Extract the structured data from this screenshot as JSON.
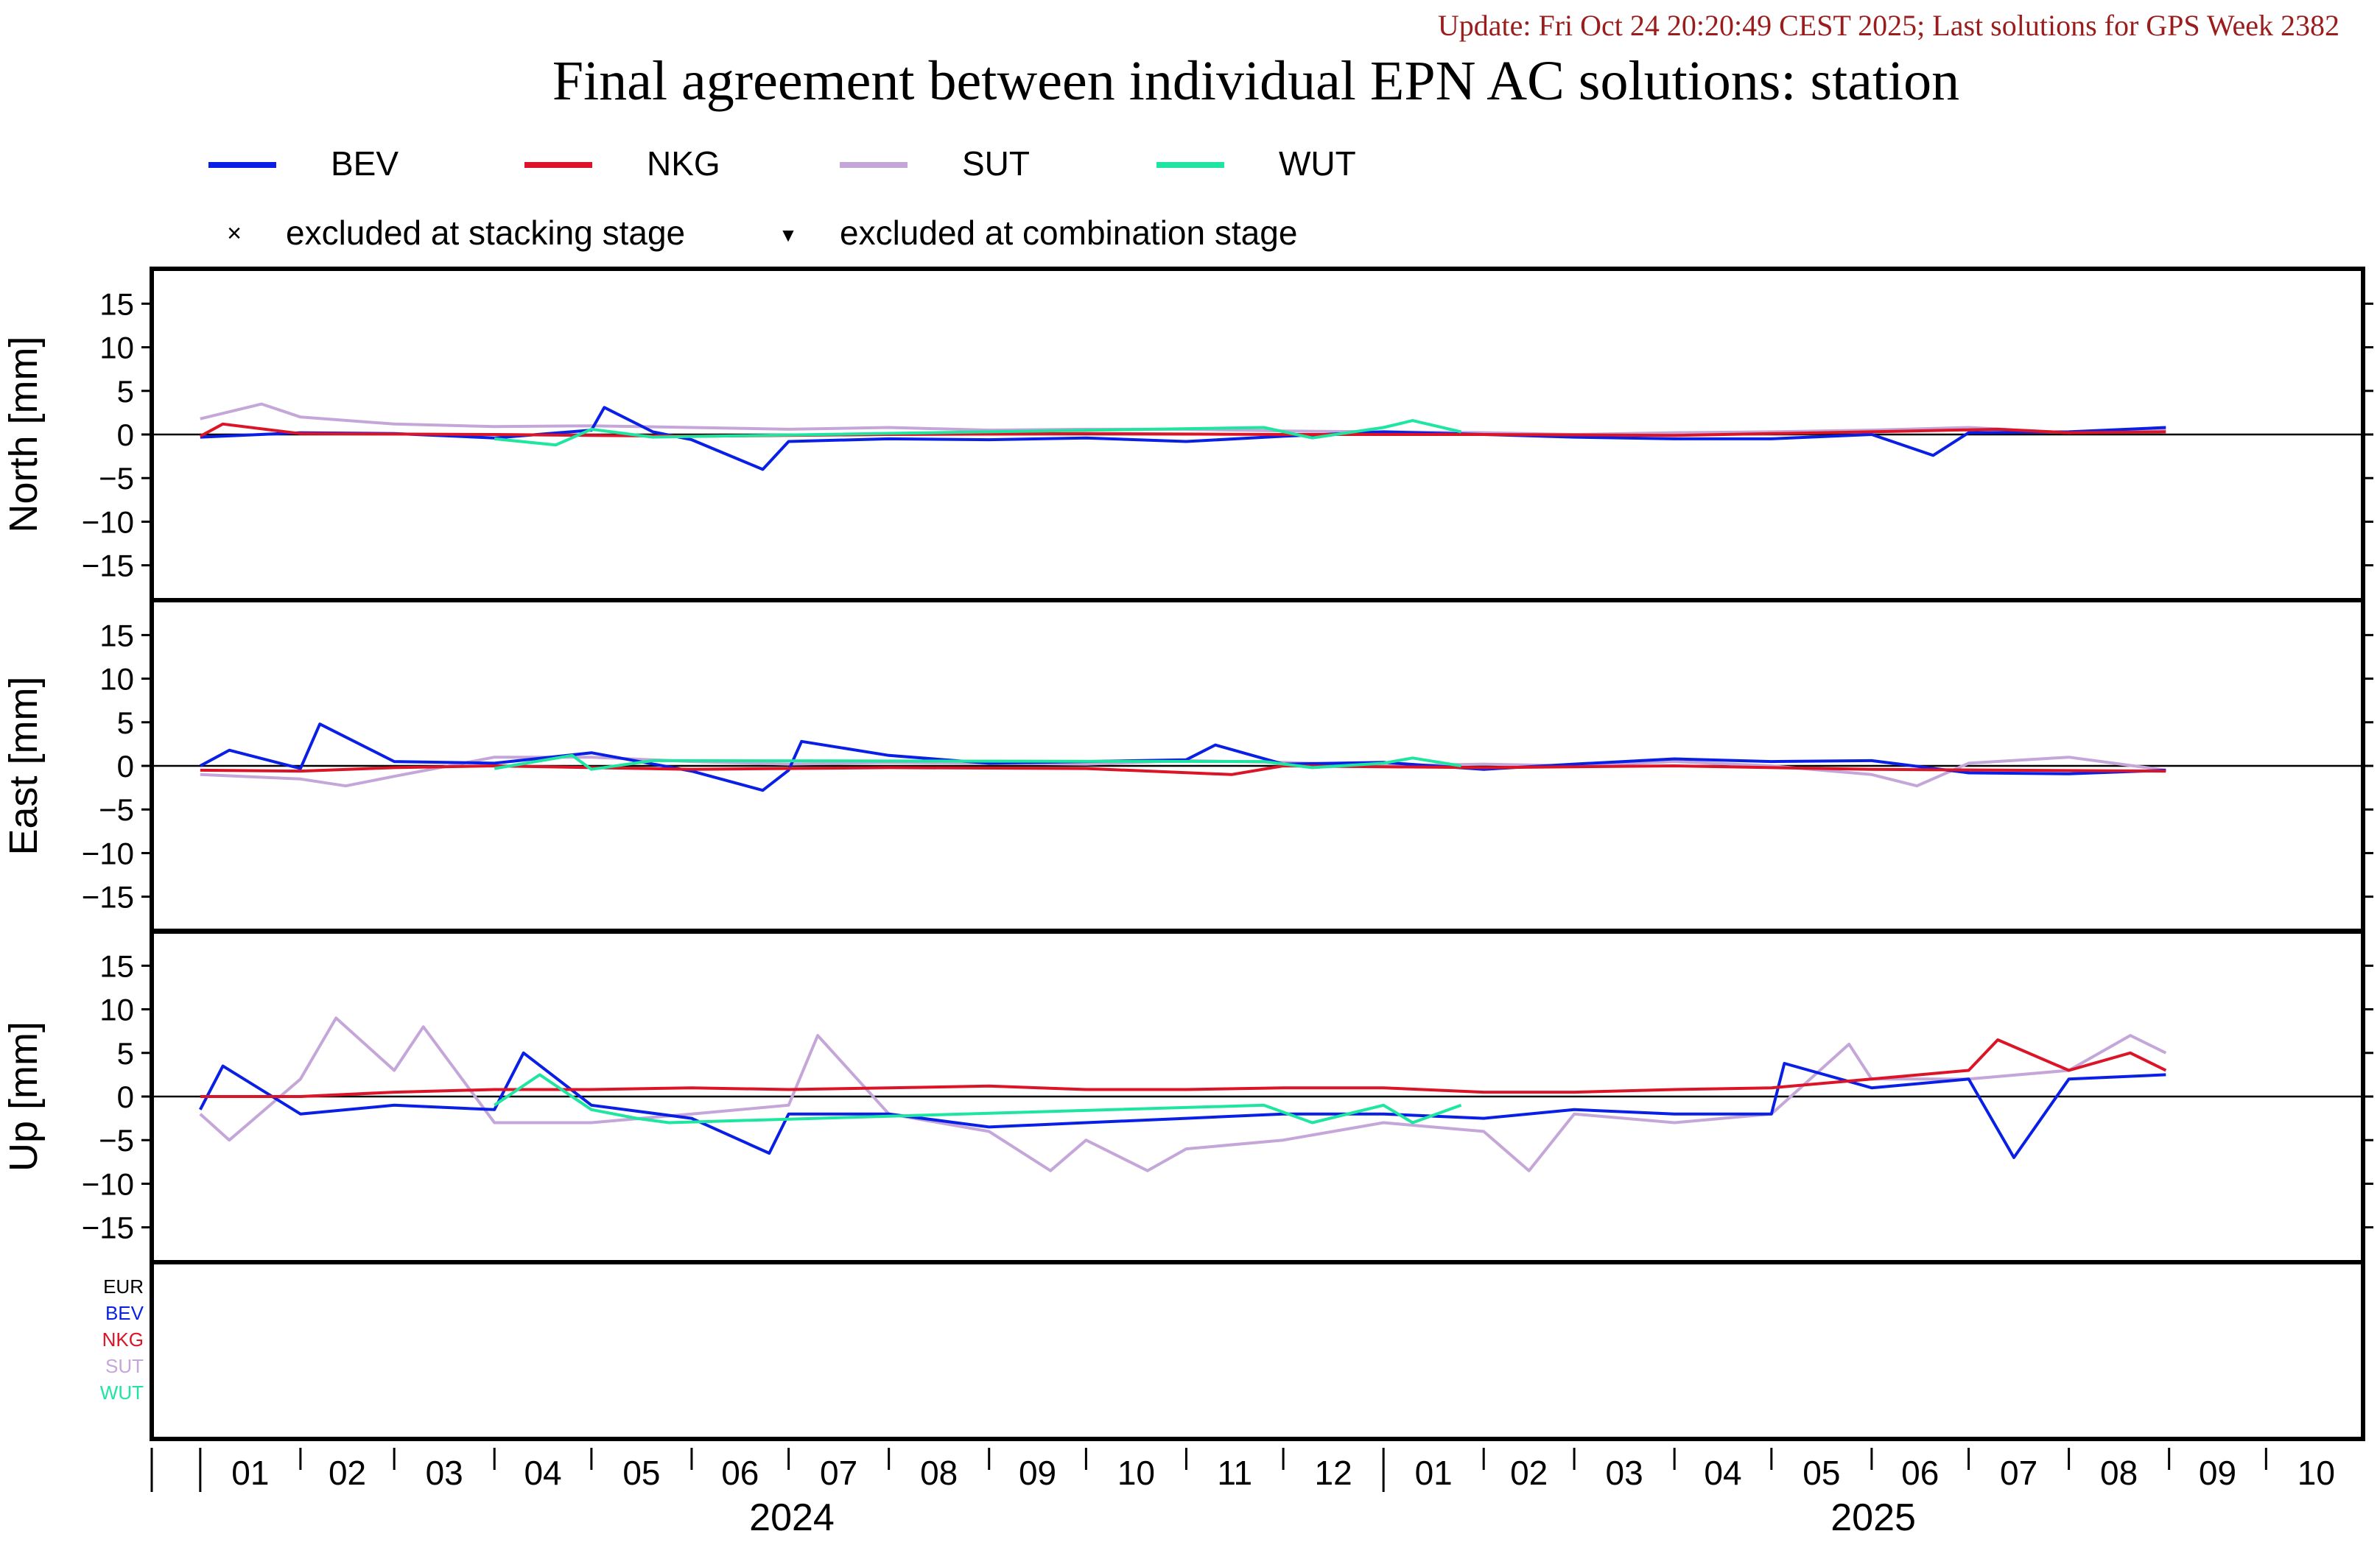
{
  "update_text": "Update: Fri Oct 24 20:20:49 CEST 2025; Last solutions for GPS Week 2382",
  "title": "Final agreement between individual EPN AC solutions: station",
  "colors": {
    "update": "#9b1c1c",
    "BEV": "#0a1fe6",
    "NKG": "#dc1428",
    "SUT": "#c5a6d9",
    "WUT": "#1ee6a0",
    "EUR": "#000000"
  },
  "legend": {
    "series": [
      {
        "key": "BEV",
        "label": "BEV"
      },
      {
        "key": "NKG",
        "label": "NKG"
      },
      {
        "key": "SUT",
        "label": "SUT"
      },
      {
        "key": "WUT",
        "label": "WUT"
      }
    ],
    "markers": [
      {
        "symbol": "×",
        "label": "excluded at stacking stage"
      },
      {
        "symbol": "▼",
        "label": "excluded at combination stage"
      }
    ]
  },
  "bottom_list": [
    {
      "key": "EUR",
      "label": "EUR"
    },
    {
      "key": "BEV",
      "label": "BEV"
    },
    {
      "key": "NKG",
      "label": "NKG"
    },
    {
      "key": "SUT",
      "label": "SUT"
    },
    {
      "key": "WUT",
      "label": "WUT"
    }
  ],
  "x_axis": {
    "month_labels": [
      "01",
      "02",
      "03",
      "04",
      "05",
      "06",
      "07",
      "08",
      "09",
      "10",
      "11",
      "12",
      "01",
      "02",
      "03",
      "04",
      "05",
      "06",
      "07",
      "08",
      "09",
      "10"
    ],
    "year_labels": [
      "2024",
      "2025"
    ]
  },
  "chart_data": {
    "type": "line",
    "x_range": [
      "2023-12-17",
      "2025-10-31"
    ],
    "y_ticks": [
      15,
      10,
      5,
      0,
      -5,
      -10,
      -15
    ],
    "ylim": [
      -19,
      19
    ],
    "panels": [
      {
        "name": "north",
        "ylabel": "North [mm]",
        "series": [
          {
            "name": "BEV",
            "x": [
              "2024-01-01",
              "2024-02-01",
              "2024-03-01",
              "2024-04-01",
              "2024-05-01",
              "2024-05-05",
              "2024-05-20",
              "2024-06-01",
              "2024-06-23",
              "2024-07-01",
              "2024-08-01",
              "2024-09-01",
              "2024-10-01",
              "2024-11-01",
              "2024-12-01",
              "2025-01-01",
              "2025-02-01",
              "2025-03-01",
              "2025-04-01",
              "2025-05-01",
              "2025-06-01",
              "2025-06-20",
              "2025-07-01",
              "2025-08-01",
              "2025-08-31"
            ],
            "y": [
              -0.3,
              0.2,
              0.1,
              -0.4,
              0.5,
              3.1,
              0.3,
              -0.6,
              -4.0,
              -0.8,
              -0.5,
              -0.6,
              -0.4,
              -0.8,
              -0.2,
              0.3,
              0.0,
              -0.3,
              -0.5,
              -0.5,
              0.0,
              -2.4,
              0.2,
              0.3,
              0.8
            ]
          },
          {
            "name": "NKG",
            "x": [
              "2024-01-01",
              "2024-01-08",
              "2024-02-01",
              "2024-04-01",
              "2024-06-01",
              "2024-08-01",
              "2024-10-01",
              "2024-12-01",
              "2025-02-01",
              "2025-04-01",
              "2025-06-01",
              "2025-07-10",
              "2025-08-01",
              "2025-08-31"
            ],
            "y": [
              -0.2,
              1.2,
              0.1,
              0.0,
              -0.2,
              0.0,
              0.1,
              0.0,
              0.0,
              -0.1,
              0.3,
              0.6,
              0.2,
              0.3
            ]
          },
          {
            "name": "SUT",
            "x": [
              "2024-01-01",
              "2024-01-20",
              "2024-02-01",
              "2024-03-01",
              "2024-04-01",
              "2024-05-01",
              "2024-06-01",
              "2024-07-01",
              "2024-08-01",
              "2024-09-01",
              "2024-10-01",
              "2024-11-01",
              "2024-12-01",
              "2025-01-01",
              "2025-02-01",
              "2025-03-01",
              "2025-04-01",
              "2025-05-01",
              "2025-06-01",
              "2025-07-01",
              "2025-08-01",
              "2025-08-31"
            ],
            "y": [
              1.8,
              3.5,
              2.0,
              1.2,
              0.9,
              1.0,
              0.8,
              0.6,
              0.8,
              0.5,
              0.6,
              0.6,
              0.4,
              0.3,
              0.2,
              0.0,
              0.2,
              0.3,
              0.5,
              0.8,
              0.2,
              0.5
            ]
          },
          {
            "name": "WUT",
            "x": [
              "2024-04-01",
              "2024-04-20",
              "2024-05-01",
              "2024-05-20",
              "2024-11-25",
              "2024-12-10",
              "2025-01-01",
              "2025-01-10",
              "2025-01-25"
            ],
            "y": [
              -0.5,
              -1.2,
              0.6,
              -0.3,
              0.8,
              -0.4,
              0.8,
              1.6,
              0.3
            ]
          }
        ]
      },
      {
        "name": "east",
        "ylabel": "East [mm]",
        "series": [
          {
            "name": "BEV",
            "x": [
              "2024-01-01",
              "2024-01-10",
              "2024-02-01",
              "2024-02-07",
              "2024-03-01",
              "2024-04-01",
              "2024-05-01",
              "2024-06-01",
              "2024-06-23",
              "2024-07-01",
              "2024-07-05",
              "2024-08-01",
              "2024-09-01",
              "2024-10-01",
              "2024-11-01",
              "2024-11-10",
              "2024-12-01",
              "2025-01-01",
              "2025-02-01",
              "2025-03-01",
              "2025-04-01",
              "2025-05-01",
              "2025-06-01",
              "2025-07-01",
              "2025-08-01",
              "2025-08-31"
            ],
            "y": [
              0.0,
              1.8,
              -0.3,
              4.8,
              0.5,
              0.3,
              1.5,
              -0.6,
              -2.8,
              -0.5,
              2.8,
              1.2,
              0.3,
              0.5,
              0.7,
              2.4,
              0.2,
              0.4,
              -0.4,
              0.2,
              0.8,
              0.5,
              0.6,
              -0.8,
              -0.9,
              -0.5
            ]
          },
          {
            "name": "NKG",
            "x": [
              "2024-01-01",
              "2024-02-01",
              "2024-03-01",
              "2024-04-01",
              "2024-06-01",
              "2024-08-01",
              "2024-10-01",
              "2024-11-15",
              "2024-12-01",
              "2025-02-01",
              "2025-04-01",
              "2025-06-01",
              "2025-08-31"
            ],
            "y": [
              -0.5,
              -0.6,
              -0.2,
              0.0,
              -0.4,
              -0.2,
              -0.3,
              -1.0,
              0.0,
              -0.2,
              0.0,
              -0.4,
              -0.6
            ]
          },
          {
            "name": "SUT",
            "x": [
              "2024-01-01",
              "2024-02-01",
              "2024-02-15",
              "2024-03-01",
              "2024-04-01",
              "2024-05-01",
              "2024-06-01",
              "2024-07-01",
              "2024-08-01",
              "2024-09-01",
              "2024-10-01",
              "2024-11-01",
              "2024-12-01",
              "2025-01-01",
              "2025-02-01",
              "2025-03-01",
              "2025-04-01",
              "2025-05-01",
              "2025-06-01",
              "2025-06-15",
              "2025-07-01",
              "2025-08-01",
              "2025-08-31"
            ],
            "y": [
              -1.0,
              -1.5,
              -2.3,
              -1.2,
              1.0,
              1.0,
              0.5,
              0.2,
              0.4,
              0.3,
              0.2,
              0.6,
              0.4,
              0.0,
              0.2,
              0.0,
              0.5,
              0.0,
              -1.0,
              -2.3,
              0.3,
              1.0,
              -0.5
            ]
          },
          {
            "name": "WUT",
            "x": [
              "2024-04-01",
              "2024-04-25",
              "2024-05-01",
              "2024-05-20",
              "2024-11-25",
              "2024-12-10",
              "2025-01-01",
              "2025-01-10",
              "2025-01-25"
            ],
            "y": [
              -0.3,
              1.2,
              -0.4,
              0.6,
              0.5,
              -0.2,
              0.3,
              0.9,
              0.0
            ]
          }
        ]
      },
      {
        "name": "up",
        "ylabel": "Up [mm]",
        "series": [
          {
            "name": "BEV",
            "x": [
              "2024-01-01",
              "2024-01-08",
              "2024-02-01",
              "2024-03-01",
              "2024-04-01",
              "2024-04-10",
              "2024-05-01",
              "2024-06-01",
              "2024-06-25",
              "2024-07-01",
              "2024-08-01",
              "2024-09-01",
              "2024-10-01",
              "2024-11-01",
              "2024-12-01",
              "2025-01-01",
              "2025-02-01",
              "2025-03-01",
              "2025-04-01",
              "2025-05-01",
              "2025-05-05",
              "2025-06-01",
              "2025-07-01",
              "2025-07-15",
              "2025-08-01",
              "2025-08-31"
            ],
            "y": [
              -1.5,
              3.5,
              -2.0,
              -1.0,
              -1.5,
              5.0,
              -1.0,
              -2.5,
              -6.5,
              -2.0,
              -2.0,
              -3.5,
              -3.0,
              -2.5,
              -2.0,
              -2.0,
              -2.5,
              -1.5,
              -2.0,
              -2.0,
              3.8,
              1.0,
              2.0,
              -7.0,
              2.0,
              2.5
            ]
          },
          {
            "name": "NKG",
            "x": [
              "2024-01-01",
              "2024-02-01",
              "2024-03-01",
              "2024-04-01",
              "2024-05-01",
              "2024-06-01",
              "2024-07-01",
              "2024-08-01",
              "2024-09-01",
              "2024-10-01",
              "2024-11-01",
              "2024-12-01",
              "2025-01-01",
              "2025-02-01",
              "2025-03-01",
              "2025-04-01",
              "2025-05-01",
              "2025-06-01",
              "2025-07-01",
              "2025-07-10",
              "2025-08-01",
              "2025-08-20",
              "2025-08-31"
            ],
            "y": [
              0.0,
              0.0,
              0.5,
              0.8,
              0.8,
              1.0,
              0.8,
              1.0,
              1.2,
              0.8,
              0.8,
              1.0,
              1.0,
              0.5,
              0.5,
              0.8,
              1.0,
              2.0,
              3.0,
              6.5,
              3.0,
              5.0,
              3.0
            ]
          },
          {
            "name": "SUT",
            "x": [
              "2024-01-01",
              "2024-01-10",
              "2024-02-01",
              "2024-02-12",
              "2024-03-01",
              "2024-03-10",
              "2024-04-01",
              "2024-05-01",
              "2024-06-01",
              "2024-07-01",
              "2024-07-10",
              "2024-08-01",
              "2024-09-01",
              "2024-09-20",
              "2024-10-01",
              "2024-10-20",
              "2024-11-01",
              "2024-12-01",
              "2025-01-01",
              "2025-02-01",
              "2025-02-15",
              "2025-03-01",
              "2025-04-01",
              "2025-05-01",
              "2025-05-25",
              "2025-06-01",
              "2025-07-01",
              "2025-08-01",
              "2025-08-20",
              "2025-08-31"
            ],
            "y": [
              -2.0,
              -5.0,
              2.0,
              9.0,
              3.0,
              8.0,
              -3.0,
              -3.0,
              -2.0,
              -1.0,
              7.0,
              -2.0,
              -4.0,
              -8.5,
              -5.0,
              -8.5,
              -6.0,
              -5.0,
              -3.0,
              -4.0,
              -8.5,
              -2.0,
              -3.0,
              -2.0,
              6.0,
              2.0,
              2.0,
              3.0,
              7.0,
              5.0
            ]
          },
          {
            "name": "WUT",
            "x": [
              "2024-04-01",
              "2024-04-15",
              "2024-05-01",
              "2024-05-15",
              "2024-05-25",
              "2024-11-25",
              "2024-12-10",
              "2025-01-01",
              "2025-01-10",
              "2025-01-25"
            ],
            "y": [
              -1.0,
              2.5,
              -1.5,
              -2.5,
              -3.0,
              -1.0,
              -3.0,
              -1.0,
              -3.0,
              -1.0
            ]
          }
        ]
      }
    ]
  }
}
